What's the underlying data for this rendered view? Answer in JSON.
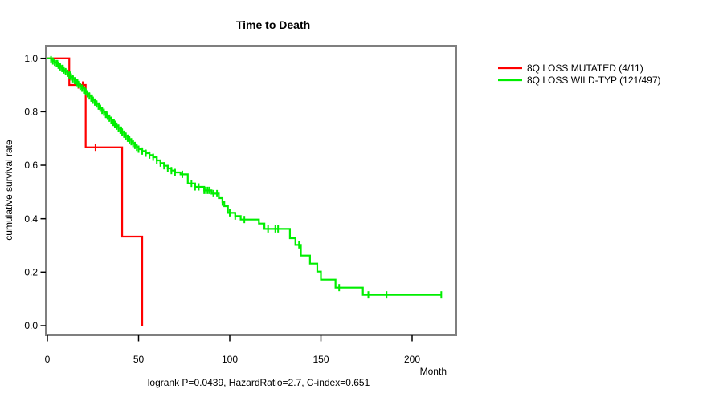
{
  "chart_data": {
    "type": "line",
    "subtype": "kaplan-meier-step",
    "title": "Time to Death",
    "xlabel": "Month",
    "ylabel": "cumulative survival rate",
    "caption": "logrank P=0.0439, HazardRatio=2.7, C-index=0.651",
    "xlim": [
      0,
      224
    ],
    "ylim": [
      0.0,
      1.0
    ],
    "xticks": [
      0,
      50,
      100,
      150,
      200
    ],
    "yticks": [
      0.0,
      0.2,
      0.4,
      0.6,
      0.8,
      1.0
    ],
    "grid": false,
    "legend_position": "right-outside",
    "frame_color": "#7f7f7f",
    "tick_color": "#000000",
    "series": [
      {
        "name": "8Q LOSS MUTATED (4/11)",
        "color": "#ff0000",
        "steps": [
          [
            0,
            1.0
          ],
          [
            12,
            0.9
          ],
          [
            21,
            0.667
          ],
          [
            41,
            0.333
          ],
          [
            52,
            0.0
          ]
        ],
        "censor_times": [
          17,
          19.4,
          26.4
        ]
      },
      {
        "name": "8Q LOSS WILD-TYP (121/497)",
        "color": "#00ee00",
        "steps": [
          [
            0,
            1.0
          ],
          [
            2,
            0.995
          ],
          [
            3,
            0.99
          ],
          [
            4,
            0.985
          ],
          [
            5,
            0.98
          ],
          [
            6,
            0.974
          ],
          [
            7,
            0.968
          ],
          [
            8,
            0.962
          ],
          [
            9,
            0.956
          ],
          [
            10,
            0.95
          ],
          [
            11,
            0.944
          ],
          [
            12,
            0.937
          ],
          [
            13,
            0.93
          ],
          [
            14,
            0.923
          ],
          [
            15,
            0.916
          ],
          [
            16,
            0.909
          ],
          [
            17,
            0.902
          ],
          [
            18,
            0.895
          ],
          [
            19,
            0.888
          ],
          [
            20,
            0.881
          ],
          [
            21,
            0.874
          ],
          [
            22,
            0.867
          ],
          [
            23,
            0.859
          ],
          [
            24,
            0.851
          ],
          [
            25,
            0.843
          ],
          [
            26,
            0.836
          ],
          [
            27,
            0.829
          ],
          [
            28,
            0.821
          ],
          [
            29,
            0.813
          ],
          [
            30,
            0.805
          ],
          [
            31,
            0.798
          ],
          [
            32,
            0.79
          ],
          [
            33,
            0.783
          ],
          [
            34,
            0.776
          ],
          [
            35,
            0.768
          ],
          [
            36,
            0.76
          ],
          [
            37,
            0.753
          ],
          [
            38,
            0.746
          ],
          [
            39,
            0.739
          ],
          [
            40,
            0.731
          ],
          [
            41,
            0.724
          ],
          [
            42,
            0.716
          ],
          [
            43,
            0.709
          ],
          [
            44,
            0.701
          ],
          [
            45,
            0.695
          ],
          [
            46,
            0.688
          ],
          [
            47,
            0.681
          ],
          [
            48,
            0.674
          ],
          [
            49,
            0.667
          ],
          [
            50,
            0.66
          ],
          [
            52,
            0.653
          ],
          [
            54,
            0.645
          ],
          [
            56,
            0.638
          ],
          [
            58,
            0.63
          ],
          [
            60,
            0.618
          ],
          [
            62,
            0.608
          ],
          [
            64,
            0.598
          ],
          [
            66,
            0.588
          ],
          [
            68,
            0.58
          ],
          [
            70,
            0.573
          ],
          [
            73,
            0.566
          ],
          [
            77,
            0.532
          ],
          [
            81,
            0.519
          ],
          [
            86,
            0.506
          ],
          [
            90,
            0.494
          ],
          [
            94,
            0.477
          ],
          [
            96,
            0.462
          ],
          [
            97,
            0.447
          ],
          [
            99,
            0.422
          ],
          [
            103,
            0.41
          ],
          [
            106,
            0.397
          ],
          [
            116,
            0.382
          ],
          [
            119,
            0.362
          ],
          [
            133,
            0.327
          ],
          [
            136,
            0.302
          ],
          [
            139,
            0.262
          ],
          [
            144,
            0.232
          ],
          [
            148,
            0.202
          ],
          [
            150,
            0.172
          ],
          [
            158,
            0.142
          ],
          [
            173,
            0.115
          ],
          [
            216,
            0.115
          ]
        ],
        "censor_times": [
          2,
          3,
          4,
          5,
          5.5,
          6,
          7,
          8,
          8.5,
          9,
          10,
          11,
          12,
          12.5,
          13,
          14,
          15,
          16,
          16.5,
          17,
          18,
          19,
          20,
          20.5,
          21,
          22,
          23,
          24,
          24.5,
          25,
          26,
          27,
          28,
          28.5,
          29,
          30,
          31,
          32,
          32.5,
          33,
          34,
          35,
          36,
          36.5,
          37,
          38,
          39,
          40,
          40.5,
          41,
          42,
          43,
          44,
          44.5,
          45,
          46,
          47,
          48,
          49,
          50,
          52,
          54,
          56,
          58,
          60,
          62,
          64,
          66,
          68,
          70,
          74,
          79,
          81,
          83,
          86,
          87,
          88,
          89,
          91,
          93,
          96,
          100,
          103,
          108,
          121,
          125,
          126.5,
          138,
          160,
          176,
          186,
          216
        ]
      }
    ]
  },
  "legend": {
    "entries": [
      {
        "label": "8Q LOSS MUTATED (4/11)"
      },
      {
        "label": "8Q LOSS WILD-TYP (121/497)"
      }
    ]
  }
}
